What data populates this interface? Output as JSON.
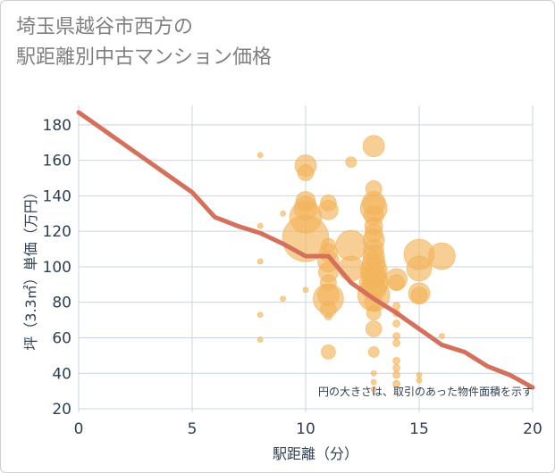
{
  "chart_data": {
    "type": "scatter",
    "title": "埼玉県越谷市西方の\n駅距離別中古マンション価格",
    "xlabel": "駅距離（分）",
    "ylabel": "坪（3.3㎡）単価（万円）",
    "note": "円の大きさは、取引のあった物件面積を示す",
    "xlim": [
      0,
      20
    ],
    "ylim": [
      18,
      191
    ],
    "xticks": [
      0,
      5,
      10,
      15,
      20
    ],
    "yticks": [
      20,
      40,
      60,
      80,
      100,
      120,
      140,
      160,
      180
    ],
    "grid": true,
    "colors": {
      "bubble": "#f3b45a",
      "line": "#d4705c",
      "grid": "#c8d4e3",
      "text": "#2f3f53"
    },
    "series": [
      {
        "kind": "bubble",
        "points": [
          {
            "x": 8,
            "y": 163,
            "s": 3
          },
          {
            "x": 8,
            "y": 123,
            "s": 3
          },
          {
            "x": 8,
            "y": 103,
            "s": 3
          },
          {
            "x": 8,
            "y": 73,
            "s": 3
          },
          {
            "x": 8,
            "y": 59,
            "s": 3
          },
          {
            "x": 9,
            "y": 130,
            "s": 3
          },
          {
            "x": 9,
            "y": 82,
            "s": 3
          },
          {
            "x": 10,
            "y": 157,
            "s": 12
          },
          {
            "x": 10,
            "y": 153,
            "s": 9
          },
          {
            "x": 10,
            "y": 137,
            "s": 11
          },
          {
            "x": 10,
            "y": 133,
            "s": 13
          },
          {
            "x": 10,
            "y": 128,
            "s": 18
          },
          {
            "x": 10,
            "y": 116,
            "s": 26
          },
          {
            "x": 10,
            "y": 87,
            "s": 3
          },
          {
            "x": 11,
            "y": 136,
            "s": 9
          },
          {
            "x": 11,
            "y": 132,
            "s": 11
          },
          {
            "x": 11,
            "y": 112,
            "s": 8
          },
          {
            "x": 11,
            "y": 108,
            "s": 10
          },
          {
            "x": 11,
            "y": 103,
            "s": 12
          },
          {
            "x": 11,
            "y": 97,
            "s": 11
          },
          {
            "x": 11,
            "y": 91,
            "s": 9
          },
          {
            "x": 11,
            "y": 84,
            "s": 12
          },
          {
            "x": 11,
            "y": 82,
            "s": 17
          },
          {
            "x": 11,
            "y": 76,
            "s": 9
          },
          {
            "x": 11,
            "y": 72,
            "s": 4
          },
          {
            "x": 11,
            "y": 52,
            "s": 8
          },
          {
            "x": 12,
            "y": 159,
            "s": 6
          },
          {
            "x": 12,
            "y": 112,
            "s": 17
          },
          {
            "x": 12,
            "y": 99,
            "s": 14
          },
          {
            "x": 13,
            "y": 168,
            "s": 12
          },
          {
            "x": 13,
            "y": 144,
            "s": 9
          },
          {
            "x": 13,
            "y": 136,
            "s": 13
          },
          {
            "x": 13,
            "y": 133,
            "s": 15
          },
          {
            "x": 13,
            "y": 129,
            "s": 11
          },
          {
            "x": 13,
            "y": 123,
            "s": 10
          },
          {
            "x": 13,
            "y": 119,
            "s": 10
          },
          {
            "x": 13,
            "y": 115,
            "s": 12
          },
          {
            "x": 13,
            "y": 110,
            "s": 11
          },
          {
            "x": 13,
            "y": 106,
            "s": 12
          },
          {
            "x": 13,
            "y": 102,
            "s": 13
          },
          {
            "x": 13,
            "y": 98,
            "s": 15
          },
          {
            "x": 13,
            "y": 95,
            "s": 14
          },
          {
            "x": 13,
            "y": 91,
            "s": 16
          },
          {
            "x": 13,
            "y": 88,
            "s": 14
          },
          {
            "x": 13,
            "y": 84,
            "s": 18
          },
          {
            "x": 13,
            "y": 80,
            "s": 10
          },
          {
            "x": 13,
            "y": 74,
            "s": 8
          },
          {
            "x": 13,
            "y": 65,
            "s": 9
          },
          {
            "x": 13,
            "y": 52,
            "s": 6
          },
          {
            "x": 13,
            "y": 40,
            "s": 3
          },
          {
            "x": 13,
            "y": 35,
            "s": 3
          },
          {
            "x": 13,
            "y": 31,
            "s": 3
          },
          {
            "x": 14,
            "y": 93,
            "s": 12
          },
          {
            "x": 14,
            "y": 91,
            "s": 9
          },
          {
            "x": 14,
            "y": 78,
            "s": 4
          },
          {
            "x": 14,
            "y": 74,
            "s": 4
          },
          {
            "x": 14,
            "y": 68,
            "s": 4
          },
          {
            "x": 14,
            "y": 61,
            "s": 4
          },
          {
            "x": 14,
            "y": 57,
            "s": 4
          },
          {
            "x": 14,
            "y": 47,
            "s": 4
          },
          {
            "x": 14,
            "y": 43,
            "s": 4
          },
          {
            "x": 14,
            "y": 39,
            "s": 4
          },
          {
            "x": 14,
            "y": 34,
            "s": 4
          },
          {
            "x": 15,
            "y": 107,
            "s": 17
          },
          {
            "x": 15,
            "y": 99,
            "s": 14
          },
          {
            "x": 15,
            "y": 85,
            "s": 12
          },
          {
            "x": 15,
            "y": 84,
            "s": 9
          },
          {
            "x": 15,
            "y": 39,
            "s": 3
          },
          {
            "x": 15,
            "y": 36,
            "s": 3
          },
          {
            "x": 16,
            "y": 106,
            "s": 15
          },
          {
            "x": 16,
            "y": 61,
            "s": 3
          }
        ]
      },
      {
        "kind": "line",
        "x": [
          0,
          1,
          2,
          3,
          4,
          5,
          6,
          7,
          8,
          9,
          10,
          11,
          12,
          13,
          14,
          15,
          16,
          17,
          18,
          19,
          20
        ],
        "y": [
          187,
          178,
          169,
          160,
          151,
          142,
          128,
          123,
          119,
          113,
          106,
          106,
          91,
          82,
          74,
          65,
          56,
          52,
          44,
          39,
          32
        ]
      }
    ]
  }
}
